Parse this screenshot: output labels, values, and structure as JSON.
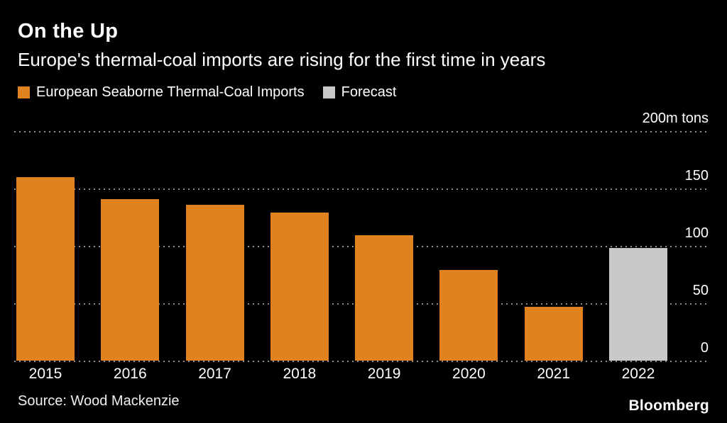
{
  "header": {
    "title": "On the Up",
    "subtitle": "Europe's thermal-coal imports are rising for the first time in years"
  },
  "legend": {
    "items": [
      {
        "label": "European Seaborne Thermal-Coal Imports",
        "color": "#E0821E"
      },
      {
        "label": "Forecast",
        "color": "#C8C8C8"
      }
    ]
  },
  "chart_data": {
    "type": "bar",
    "title": "On the Up",
    "subtitle": "Europe's thermal-coal imports are rising for the first time in years",
    "categories": [
      "2015",
      "2016",
      "2017",
      "2018",
      "2019",
      "2020",
      "2021",
      "2022"
    ],
    "values": [
      160,
      141,
      136,
      129,
      109,
      79,
      47,
      98
    ],
    "series_name": "European Seaborne Thermal-Coal Imports",
    "forecast_categories": [
      "2022"
    ],
    "unit": "m tons",
    "ylim": [
      0,
      200
    ],
    "yticks": [
      200,
      150,
      100,
      50,
      0
    ],
    "ytick_labels": [
      "200m tons",
      "150",
      "100",
      "50",
      "0"
    ],
    "colors": {
      "actual": "#E0821E",
      "forecast": "#C8C8C8"
    },
    "grid": "horizontal dotted",
    "legend_position": "top-left",
    "ytick_position": "right"
  },
  "footer": {
    "source": "Source: Wood Mackenzie",
    "brand": "Bloomberg"
  }
}
